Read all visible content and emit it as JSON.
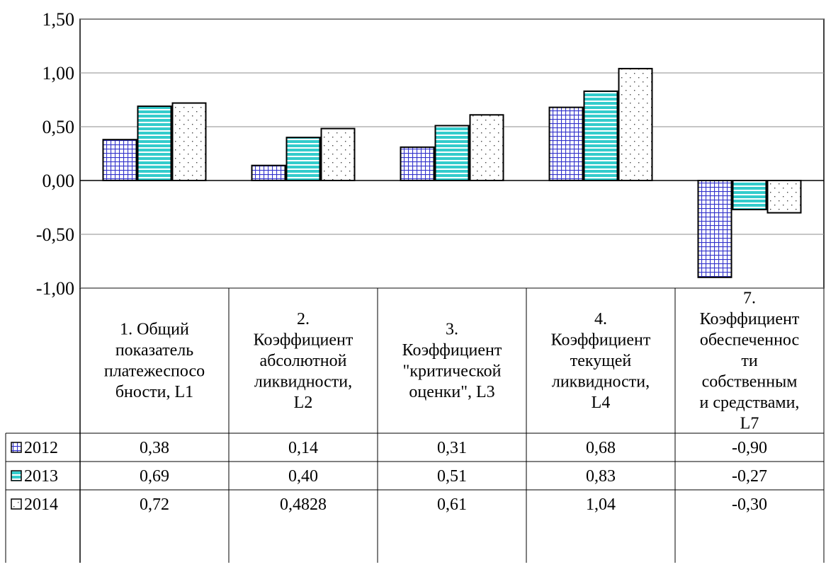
{
  "chart_data": {
    "type": "bar",
    "title": "",
    "xlabel": "",
    "ylabel": "",
    "ylim": [
      -1.0,
      1.5
    ],
    "yticks": [
      "1,50",
      "1,00",
      "0,50",
      "0,00",
      "-0,50",
      "-1,00"
    ],
    "grid": true,
    "legend": "data-table-left",
    "categories": [
      "1. Общий показатель платежеспосо бности, L1",
      "2. Коэффициент абсолютной ликвидности, L2",
      "3. Коэффициент \"критической оценки\", L3",
      "4. Коэффициент текущей ликвидности, L4",
      "7. Коэффициент обеспеченнос ти собственным и средствами, L7"
    ],
    "category_lines": [
      [
        "1. Общий",
        "показатель",
        "платежеспосо",
        "бности, L1"
      ],
      [
        "2.",
        "Коэффициент",
        "абсолютной",
        "ликвидности,",
        "L2"
      ],
      [
        "3.",
        "Коэффициент",
        "\"критической",
        "оценки\", L3"
      ],
      [
        "4.",
        "Коэффициент",
        "текущей",
        "ликвидности,",
        "L4"
      ],
      [
        "7.",
        "Коэффициент",
        "обеспеченнос",
        "ти",
        "собственным",
        "и средствами,",
        "L7"
      ]
    ],
    "series": [
      {
        "name": "2012",
        "values": [
          0.38,
          0.14,
          0.31,
          0.68,
          -0.9
        ],
        "labels": [
          "0,38",
          "0,14",
          "0,31",
          "0,68",
          "-0,90"
        ],
        "color": "#3333cc",
        "pattern": "grid"
      },
      {
        "name": "2013",
        "values": [
          0.69,
          0.4,
          0.51,
          0.83,
          -0.27
        ],
        "labels": [
          "0,69",
          "0,40",
          "0,51",
          "0,83",
          "-0,27"
        ],
        "color": "#33cccc",
        "pattern": "horizontal-stripes"
      },
      {
        "name": "2014",
        "values": [
          0.72,
          0.4828,
          0.61,
          1.04,
          -0.3
        ],
        "labels": [
          "0,72",
          "0,4828",
          "0,61",
          "1,04",
          "-0,30"
        ],
        "color": "#ffffff",
        "pattern": "dots"
      }
    ]
  }
}
